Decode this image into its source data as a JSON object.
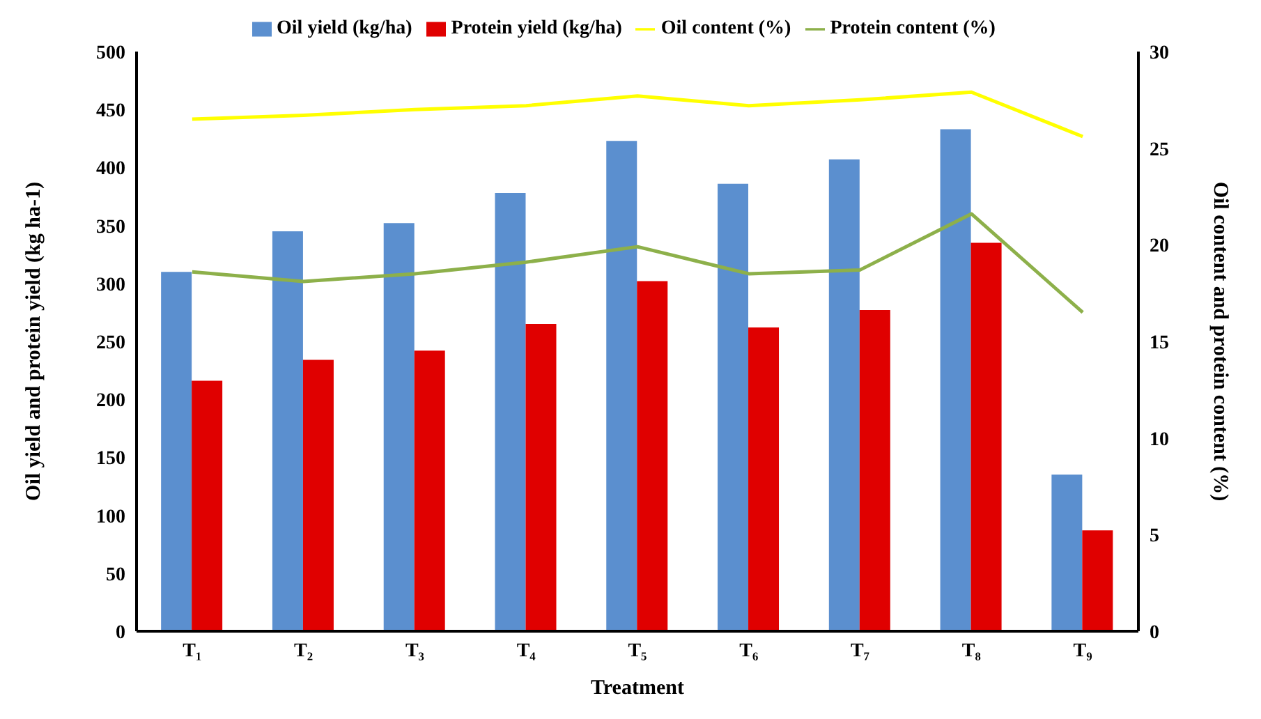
{
  "chart_data": {
    "type": "bar",
    "xlabel": "Treatment",
    "ylabel": "Oil yield and protein yield (kg ha-1)",
    "y2label": "Oil content and protein content (%)",
    "categories": [
      "T₁",
      "T₂",
      "T₃",
      "T₄",
      "T₅",
      "T₆",
      "T₇",
      "T₈",
      "T₉"
    ],
    "series": [
      {
        "name": "Oil yield (kg/ha)",
        "color": "#5b8fcf",
        "values": [
          310,
          345,
          352,
          378,
          423,
          386,
          407,
          433,
          135
        ]
      },
      {
        "name": "Protein yield (kg/ha)",
        "color": "#e00000",
        "values": [
          216,
          234,
          242,
          265,
          302,
          262,
          277,
          335,
          87
        ]
      },
      {
        "name": "Oil content (%)",
        "type": "line",
        "axis": "y2",
        "color": "#ffff00",
        "values": [
          26.5,
          26.7,
          27.0,
          27.2,
          27.7,
          27.2,
          27.5,
          27.9,
          25.6
        ]
      },
      {
        "name": "Protein content (%)",
        "type": "line",
        "axis": "y2",
        "color": "#8db04a",
        "values": [
          18.6,
          18.1,
          18.5,
          19.1,
          19.9,
          18.5,
          18.7,
          21.6,
          16.5
        ]
      }
    ],
    "ylim": [
      0,
      500
    ],
    "yticks": [
      0,
      50,
      100,
      150,
      200,
      250,
      300,
      350,
      400,
      450,
      500
    ],
    "y2lim": [
      0,
      30
    ],
    "y2ticks": [
      0,
      5,
      10,
      15,
      20,
      25,
      30
    ],
    "legend": "top",
    "grid": false,
    "marker": "none"
  }
}
